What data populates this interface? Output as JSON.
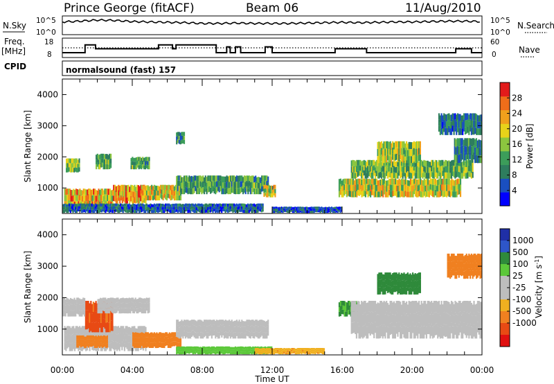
{
  "header": {
    "station": "Prince George (fitACF)",
    "beam": "Beam 06",
    "date": "11/Aug/2010"
  },
  "nsky_panel": {
    "left_label": "N.Sky",
    "left_ticks": [
      "10^5",
      "10^0"
    ],
    "right_label": "N.Search",
    "right_ticks": [
      "10^5",
      "10^0"
    ]
  },
  "freq_panel": {
    "left_label_1": "Freq.",
    "left_label_2": "[MHz]",
    "left_ticks": [
      "18",
      "8"
    ],
    "right_label": "Nave",
    "right_ticks": [
      "60",
      "0"
    ],
    "cpid_label": "CPID",
    "cpid_text": "normalsound (fast) 157"
  },
  "colors": {
    "power_scale": [
      "#0000ff",
      "#1a4fc0",
      "#2e7d5e",
      "#3c9d5a",
      "#8cc63f",
      "#e8d21a",
      "#f0a01c",
      "#ef6d1a",
      "#e21b1b"
    ],
    "velocity_scale": [
      "#1f2fa6",
      "#2e56c9",
      "#2f8a3b",
      "#5cc83a",
      "#bdbdbd",
      "#bdbdbd",
      "#f0b020",
      "#f08020",
      "#e84a14",
      "#e01010"
    ]
  },
  "chart_data": [
    {
      "type": "line",
      "panel": "N.Sky / N.Search",
      "x_label": "",
      "xlim_hours": [
        0,
        24
      ],
      "series": [
        {
          "name": "N.Sky",
          "x": [
            0,
            1,
            2,
            3,
            4,
            5,
            6,
            7,
            8,
            9,
            10,
            11,
            12,
            13,
            14,
            15,
            16,
            17,
            18,
            19,
            20,
            21,
            22,
            23,
            24
          ],
          "values_log10": [
            3.4,
            3.6,
            3.9,
            3.8,
            3.5,
            3.4,
            3.3,
            3.2,
            3.0,
            3.0,
            3.1,
            3.0,
            3.0,
            3.0,
            3.1,
            3.2,
            3.3,
            3.2,
            3.3,
            3.4,
            3.4,
            3.5,
            3.6,
            3.6,
            3.5
          ]
        },
        {
          "name": "N.Search",
          "x": [],
          "values_log10": []
        }
      ]
    },
    {
      "type": "line",
      "panel": "Freq / Nave",
      "xlim_hours": [
        0,
        24
      ],
      "series": [
        {
          "name": "Freq.",
          "unit": "MHz",
          "ylim": [
            8,
            18
          ],
          "steps": [
            [
              0,
              10.5
            ],
            [
              1.3,
              14.5
            ],
            [
              1.9,
              12.5
            ],
            [
              5.5,
              14.5
            ],
            [
              6.3,
              12.5
            ],
            [
              6.5,
              14.5
            ],
            [
              8.8,
              10.5
            ],
            [
              9.4,
              13.5
            ],
            [
              9.6,
              10.5
            ],
            [
              9.9,
              13.5
            ],
            [
              10.2,
              10.5
            ],
            [
              11.6,
              13.5
            ],
            [
              12.0,
              10.5
            ],
            [
              15.6,
              12.5
            ],
            [
              17.4,
              10.5
            ],
            [
              22.5,
              12.5
            ],
            [
              23.4,
              10.5
            ],
            [
              24,
              10.5
            ]
          ]
        },
        {
          "name": "Nave",
          "ylim": [
            0,
            60
          ],
          "constant": 38
        }
      ]
    },
    {
      "type": "heatmap",
      "panel": "Power",
      "title": "",
      "xlabel": "",
      "ylabel": "Slant Range [km]",
      "xlim_hours": [
        0,
        24
      ],
      "ylim_km": [
        180,
        4500
      ],
      "y_ticks": [
        1000,
        2000,
        3000,
        4000
      ],
      "colorbar_label": "Power [dB]",
      "colorbar_ticks": [
        4,
        8,
        12,
        16,
        20,
        24,
        28
      ],
      "colorbar_range": [
        0,
        32
      ],
      "regions": [
        {
          "t": [
            0.1,
            2.9
          ],
          "r": [
            380,
            980
          ],
          "value": 22
        },
        {
          "t": [
            0.2,
            1.0
          ],
          "r": [
            1500,
            1950
          ],
          "value": 14
        },
        {
          "t": [
            1.9,
            2.8
          ],
          "r": [
            1600,
            2100
          ],
          "value": 14
        },
        {
          "t": [
            2.9,
            4.8
          ],
          "r": [
            500,
            1100
          ],
          "value": 24
        },
        {
          "t": [
            3.9,
            5.0
          ],
          "r": [
            1600,
            2000
          ],
          "value": 13
        },
        {
          "t": [
            4.5,
            6.8
          ],
          "r": [
            600,
            1100
          ],
          "value": 20
        },
        {
          "t": [
            6.5,
            7.0
          ],
          "r": [
            2400,
            2800
          ],
          "value": 10
        },
        {
          "t": [
            6.5,
            11.8
          ],
          "r": [
            800,
            1400
          ],
          "value": 12
        },
        {
          "t": [
            0.0,
            11.5
          ],
          "r": [
            200,
            500
          ],
          "value": 7
        },
        {
          "t": [
            11.5,
            12.2
          ],
          "r": [
            700,
            1100
          ],
          "value": 18
        },
        {
          "t": [
            12.0,
            16.0
          ],
          "r": [
            200,
            400
          ],
          "value": 6
        },
        {
          "t": [
            15.8,
            22.8
          ],
          "r": [
            700,
            1300
          ],
          "value": 18
        },
        {
          "t": [
            16.5,
            23.5
          ],
          "r": [
            1300,
            1900
          ],
          "value": 14
        },
        {
          "t": [
            18.0,
            20.5
          ],
          "r": [
            1800,
            2500
          ],
          "value": 16
        },
        {
          "t": [
            22.4,
            24.0
          ],
          "r": [
            1800,
            2600
          ],
          "value": 10
        },
        {
          "t": [
            21.5,
            24.0
          ],
          "r": [
            2700,
            3400
          ],
          "value": 8
        }
      ]
    },
    {
      "type": "heatmap",
      "panel": "Velocity",
      "title": "",
      "xlabel": "Time UT",
      "ylabel": "Slant Range [km]",
      "xlim_hours": [
        0,
        24
      ],
      "x_ticks": [
        "00:00",
        "04:00",
        "08:00",
        "12:00",
        "16:00",
        "20:00",
        "00:00"
      ],
      "ylim_km": [
        180,
        4500
      ],
      "y_ticks": [
        1000,
        2000,
        3000,
        4000
      ],
      "colorbar_label": "Velocity [m s^-1]",
      "colorbar_ticks": [
        "1000",
        "500",
        "100",
        "25",
        "-25",
        "-100",
        "-500",
        "-1000"
      ],
      "regions": [
        {
          "t": [
            0.1,
            4.8
          ],
          "r": [
            300,
            1100
          ],
          "value": 0
        },
        {
          "t": [
            1.3,
            2.9
          ],
          "r": [
            900,
            1900
          ],
          "value": -600
        },
        {
          "t": [
            0.8,
            2.6
          ],
          "r": [
            400,
            800
          ],
          "value": -150
        },
        {
          "t": [
            4.0,
            6.8
          ],
          "r": [
            400,
            900
          ],
          "value": -150
        },
        {
          "t": [
            0.0,
            1.3
          ],
          "r": [
            1400,
            2000
          ],
          "value": 0
        },
        {
          "t": [
            2.0,
            5.0
          ],
          "r": [
            1500,
            2000
          ],
          "value": 0
        },
        {
          "t": [
            6.5,
            11.8
          ],
          "r": [
            700,
            1300
          ],
          "value": 0
        },
        {
          "t": [
            6.5,
            12.0
          ],
          "r": [
            200,
            450
          ],
          "value": 40
        },
        {
          "t": [
            11.0,
            15.0
          ],
          "r": [
            200,
            400
          ],
          "value": -80
        },
        {
          "t": [
            15.8,
            16.9
          ],
          "r": [
            1400,
            1900
          ],
          "value": 120
        },
        {
          "t": [
            16.5,
            24.0
          ],
          "r": [
            700,
            1900
          ],
          "value": 0
        },
        {
          "t": [
            18.0,
            20.5
          ],
          "r": [
            2100,
            2800
          ],
          "value": 200
        },
        {
          "t": [
            22.0,
            24.0
          ],
          "r": [
            2600,
            3400
          ],
          "value": -150
        }
      ]
    }
  ],
  "time_axis": {
    "ticks": [
      "00:00",
      "04:00",
      "08:00",
      "12:00",
      "16:00",
      "20:00",
      "00:00"
    ],
    "label": "Time UT"
  },
  "power_axis_label": "Slant Range [km]",
  "velocity_axis_label": "Slant Range [km]",
  "power_cbar_label": "Power [dB]",
  "velocity_cbar_label": "Velocity [m s",
  "velocity_cbar_label_sup": "-1",
  "velocity_cbar_label_end": "]"
}
